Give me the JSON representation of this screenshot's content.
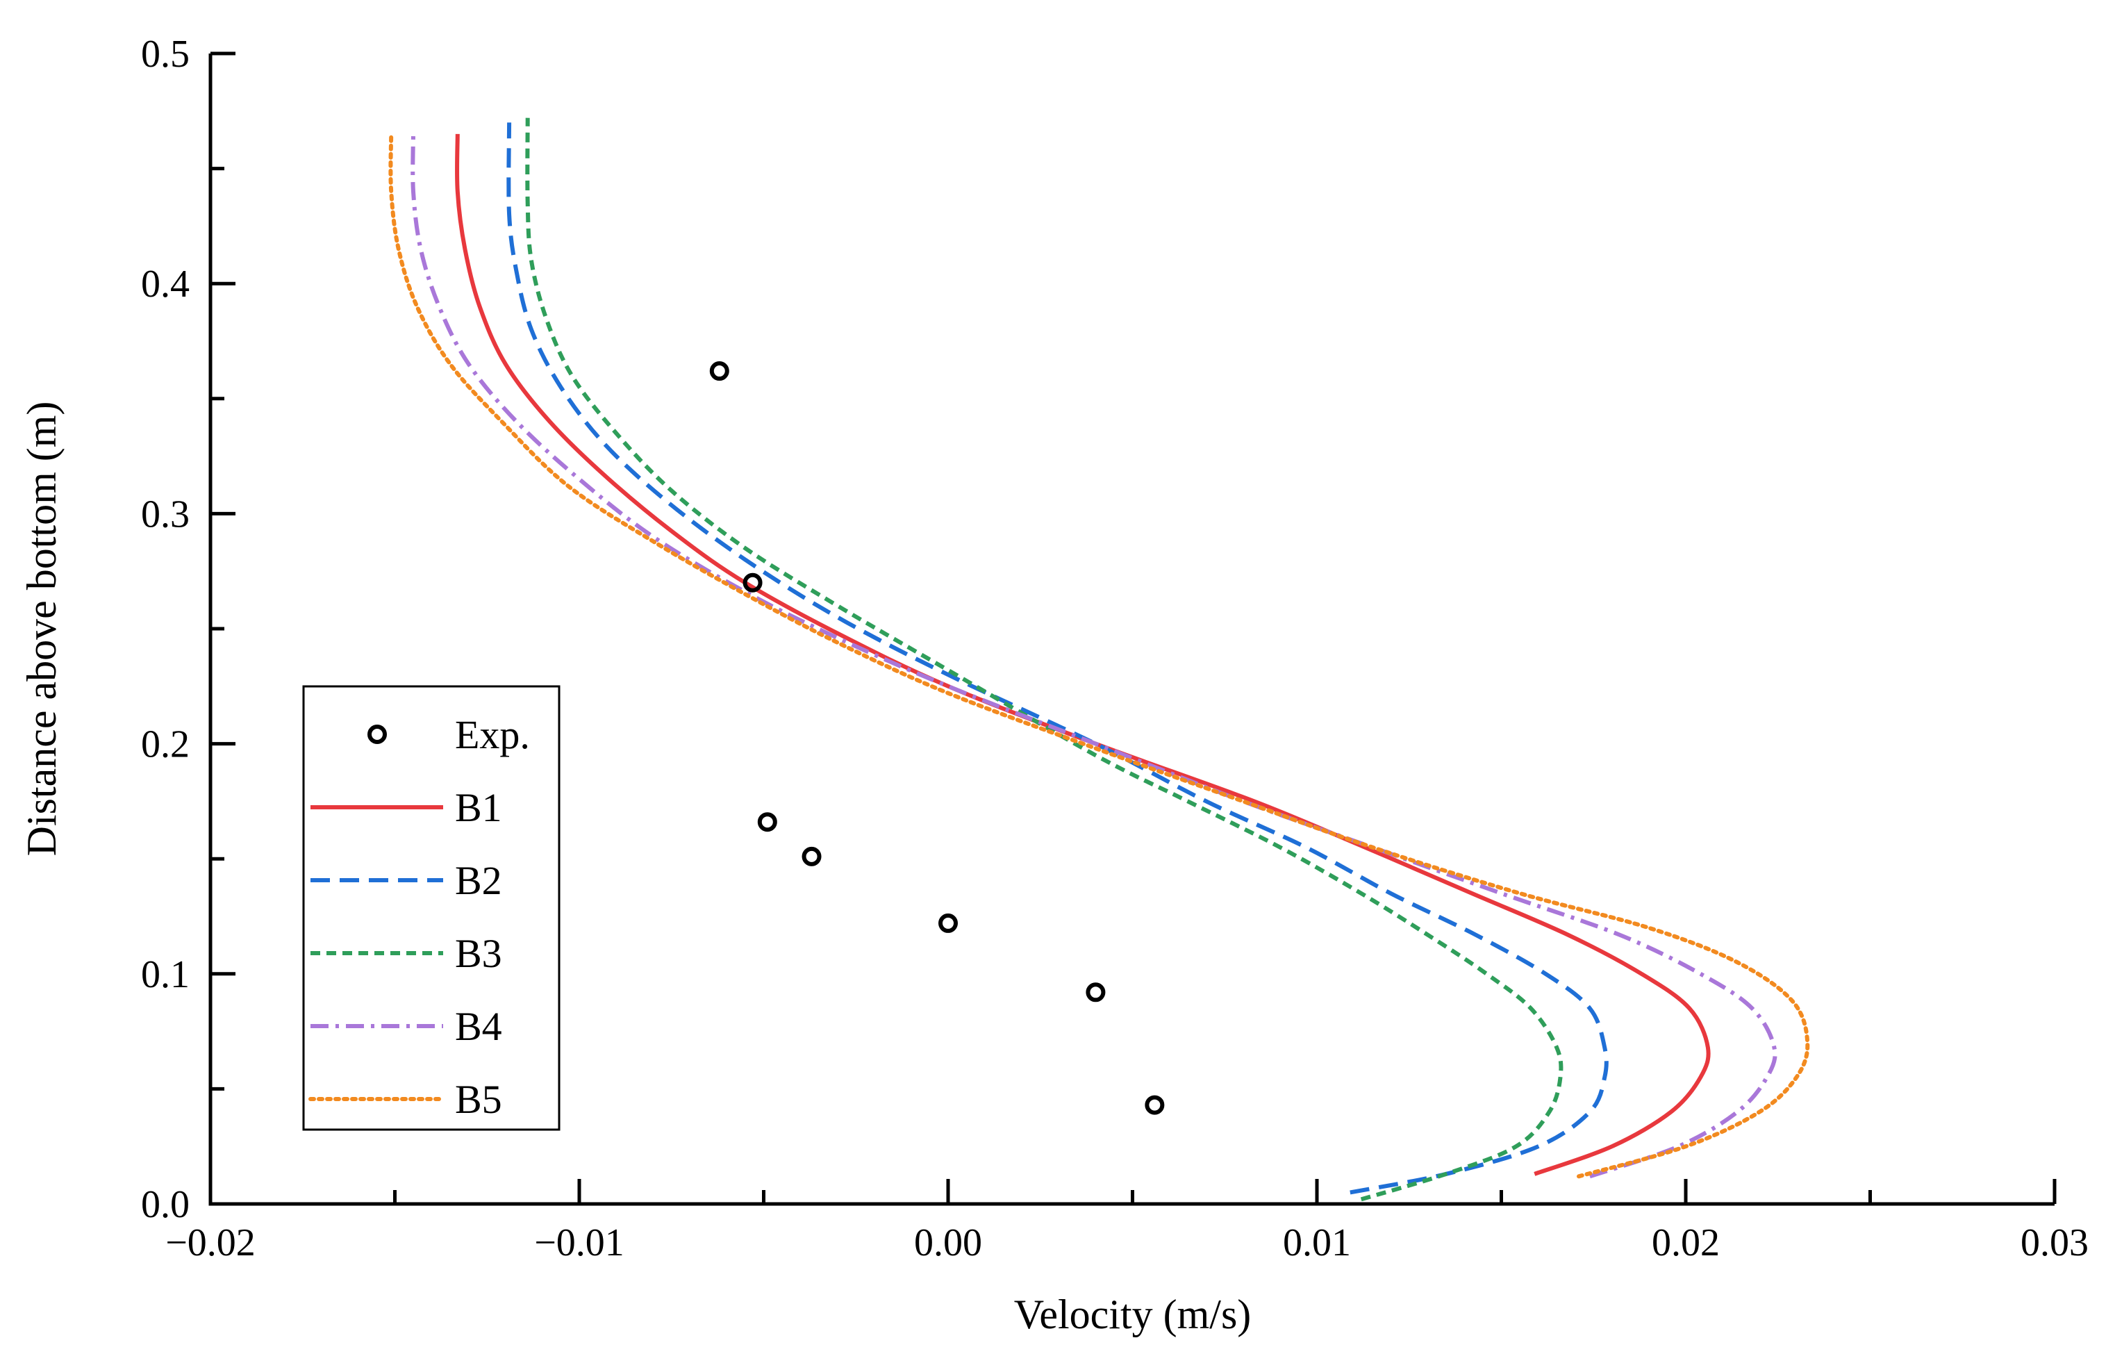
{
  "chart_data": {
    "type": "line",
    "title": "",
    "xlabel": "Velocity (m/s)",
    "ylabel": "Distance above bottom (m)",
    "xlim": [
      -0.02,
      0.03
    ],
    "ylim": [
      0.0,
      0.5
    ],
    "x_ticks": [
      -0.02,
      -0.01,
      0.0,
      0.01,
      0.02,
      0.03
    ],
    "x_tick_labels": [
      "−0.02",
      "−0.01",
      "0.00",
      "0.01",
      "0.02",
      "0.03"
    ],
    "y_ticks": [
      0.0,
      0.1,
      0.2,
      0.3,
      0.4,
      0.5
    ],
    "y_tick_labels": [
      "0.0",
      "0.1",
      "0.2",
      "0.3",
      "0.4",
      "0.5"
    ],
    "grid": false,
    "legend_position": "bottom-left",
    "experimental": {
      "name": "Exp.",
      "marker": "open-circle",
      "color": "#000000",
      "points": [
        {
          "x": -0.0062,
          "y": 0.362
        },
        {
          "x": -0.0053,
          "y": 0.27
        },
        {
          "x": -0.0049,
          "y": 0.166
        },
        {
          "x": -0.0037,
          "y": 0.151
        },
        {
          "x": 0.0,
          "y": 0.122
        },
        {
          "x": 0.004,
          "y": 0.092
        },
        {
          "x": 0.0056,
          "y": 0.043
        }
      ]
    },
    "series": [
      {
        "name": "B1",
        "color": "#e8383d",
        "dash": "solid",
        "points": [
          [
            0.0159,
            0.013
          ],
          [
            0.018,
            0.025
          ],
          [
            0.0196,
            0.04
          ],
          [
            0.0204,
            0.055
          ],
          [
            0.0206,
            0.068
          ],
          [
            0.0201,
            0.085
          ],
          [
            0.0188,
            0.1
          ],
          [
            0.0168,
            0.117
          ],
          [
            0.0142,
            0.135
          ],
          [
            0.0113,
            0.155
          ],
          [
            0.0083,
            0.175
          ],
          [
            0.004,
            0.2
          ],
          [
            0.0,
            0.225
          ],
          [
            -0.003,
            0.248
          ],
          [
            -0.0055,
            0.27
          ],
          [
            -0.0073,
            0.29
          ],
          [
            -0.0092,
            0.315
          ],
          [
            -0.0108,
            0.34
          ],
          [
            -0.012,
            0.365
          ],
          [
            -0.0127,
            0.39
          ],
          [
            -0.0131,
            0.415
          ],
          [
            -0.0133,
            0.44
          ],
          [
            -0.0133,
            0.465
          ]
        ]
      },
      {
        "name": "B2",
        "color": "#1f6fd6",
        "dash": "dashed",
        "points": [
          [
            0.0109,
            0.005
          ],
          [
            0.0135,
            0.013
          ],
          [
            0.016,
            0.025
          ],
          [
            0.0174,
            0.04
          ],
          [
            0.0178,
            0.055
          ],
          [
            0.0178,
            0.068
          ],
          [
            0.0174,
            0.085
          ],
          [
            0.0162,
            0.1
          ],
          [
            0.0143,
            0.117
          ],
          [
            0.012,
            0.135
          ],
          [
            0.0097,
            0.155
          ],
          [
            0.007,
            0.175
          ],
          [
            0.004,
            0.2
          ],
          [
            0.0,
            0.23
          ],
          [
            -0.003,
            0.255
          ],
          [
            -0.0055,
            0.28
          ],
          [
            -0.0076,
            0.305
          ],
          [
            -0.0093,
            0.33
          ],
          [
            -0.0105,
            0.355
          ],
          [
            -0.0113,
            0.38
          ],
          [
            -0.0117,
            0.405
          ],
          [
            -0.0119,
            0.43
          ],
          [
            -0.0119,
            0.47
          ]
        ]
      },
      {
        "name": "B3",
        "color": "#2f9e5a",
        "dash": "short-dashed",
        "points": [
          [
            0.0112,
            0.002
          ],
          [
            0.0135,
            0.013
          ],
          [
            0.0154,
            0.025
          ],
          [
            0.0163,
            0.04
          ],
          [
            0.0166,
            0.055
          ],
          [
            0.0165,
            0.068
          ],
          [
            0.0158,
            0.085
          ],
          [
            0.0146,
            0.1
          ],
          [
            0.013,
            0.117
          ],
          [
            0.0112,
            0.135
          ],
          [
            0.009,
            0.155
          ],
          [
            0.0065,
            0.175
          ],
          [
            0.004,
            0.195
          ],
          [
            0.0,
            0.232
          ],
          [
            -0.003,
            0.26
          ],
          [
            -0.0055,
            0.285
          ],
          [
            -0.0075,
            0.31
          ],
          [
            -0.009,
            0.335
          ],
          [
            -0.0102,
            0.36
          ],
          [
            -0.0109,
            0.385
          ],
          [
            -0.0113,
            0.41
          ],
          [
            -0.0114,
            0.435
          ],
          [
            -0.0114,
            0.472
          ]
        ]
      },
      {
        "name": "B4",
        "color": "#a977d9",
        "dash": "dash-dot",
        "points": [
          [
            0.0174,
            0.012
          ],
          [
            0.0198,
            0.025
          ],
          [
            0.0214,
            0.04
          ],
          [
            0.0222,
            0.055
          ],
          [
            0.0224,
            0.068
          ],
          [
            0.0218,
            0.085
          ],
          [
            0.0204,
            0.1
          ],
          [
            0.0182,
            0.117
          ],
          [
            0.015,
            0.135
          ],
          [
            0.0115,
            0.155
          ],
          [
            0.008,
            0.175
          ],
          [
            0.004,
            0.2
          ],
          [
            0.0,
            0.225
          ],
          [
            -0.003,
            0.246
          ],
          [
            -0.0055,
            0.266
          ],
          [
            -0.008,
            0.29
          ],
          [
            -0.01,
            0.315
          ],
          [
            -0.0117,
            0.34
          ],
          [
            -0.013,
            0.365
          ],
          [
            -0.0138,
            0.39
          ],
          [
            -0.0143,
            0.415
          ],
          [
            -0.0145,
            0.44
          ],
          [
            -0.0145,
            0.465
          ]
        ]
      },
      {
        "name": "B5",
        "color": "#f28a1f",
        "dash": "dotted",
        "points": [
          [
            0.0171,
            0.012
          ],
          [
            0.02,
            0.025
          ],
          [
            0.022,
            0.04
          ],
          [
            0.023,
            0.055
          ],
          [
            0.0233,
            0.07
          ],
          [
            0.0229,
            0.088
          ],
          [
            0.0214,
            0.105
          ],
          [
            0.019,
            0.12
          ],
          [
            0.0155,
            0.135
          ],
          [
            0.0115,
            0.155
          ],
          [
            0.008,
            0.175
          ],
          [
            0.004,
            0.198
          ],
          [
            0.0,
            0.222
          ],
          [
            -0.003,
            0.244
          ],
          [
            -0.0055,
            0.265
          ],
          [
            -0.008,
            0.288
          ],
          [
            -0.0103,
            0.312
          ],
          [
            -0.0121,
            0.34
          ],
          [
            -0.0135,
            0.365
          ],
          [
            -0.0144,
            0.39
          ],
          [
            -0.0149,
            0.415
          ],
          [
            -0.0151,
            0.44
          ],
          [
            -0.0151,
            0.465
          ]
        ]
      }
    ]
  }
}
